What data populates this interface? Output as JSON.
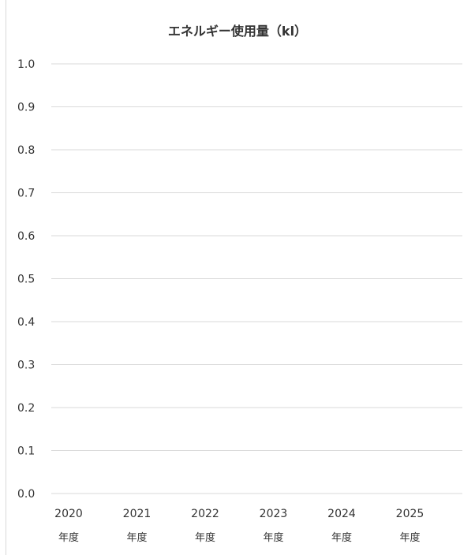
{
  "chart_data": {
    "type": "bar",
    "title": "エネルギー使用量（kl）",
    "xlabel": "",
    "ylabel": "",
    "categories": [
      {
        "year": "2020",
        "unit": "年度"
      },
      {
        "year": "2021",
        "unit": "年度"
      },
      {
        "year": "2022",
        "unit": "年度"
      },
      {
        "year": "2023",
        "unit": "年度"
      },
      {
        "year": "2024",
        "unit": "年度"
      },
      {
        "year": "2025",
        "unit": "年度"
      }
    ],
    "series": [
      {
        "values": [
          0,
          0,
          0,
          0,
          0,
          0
        ]
      }
    ],
    "ylim": [
      0,
      1.0
    ],
    "yticks": [
      "0.0",
      "0.1",
      "0.2",
      "0.3",
      "0.4",
      "0.5",
      "0.6",
      "0.7",
      "0.8",
      "0.9",
      "1.0"
    ],
    "grid": true,
    "legend": "none",
    "colors": {
      "grid": "#d9d9d9",
      "text": "#333333",
      "bar": "#4472c4"
    }
  }
}
